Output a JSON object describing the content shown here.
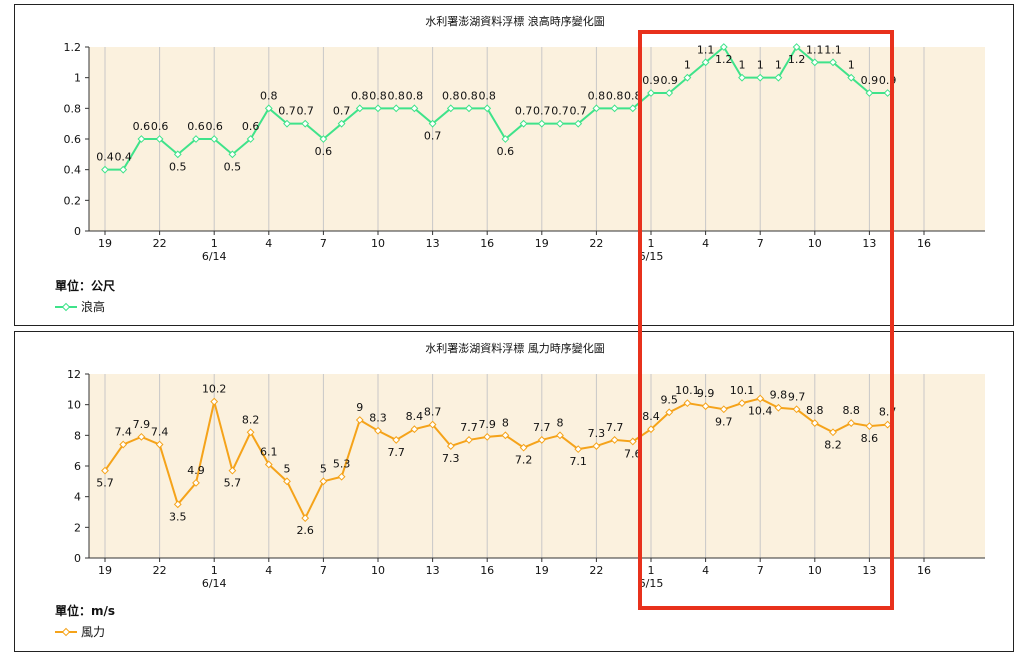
{
  "colors": {
    "plot_bg": "#fbf1de",
    "grid": "#c8c8c8",
    "axis": "#333333",
    "highlight": "#e8311c"
  },
  "highlight": {
    "shape": "rectangle",
    "color": "#e8311c"
  },
  "chart_data": [
    {
      "type": "line",
      "title": "水利署澎湖資料浮標 浪高時序變化圖",
      "ylim": [
        0,
        1.2
      ],
      "yticks": [
        "0",
        "0.2",
        "0.4",
        "0.6",
        "0.8",
        "1",
        "1.2"
      ],
      "xticks": [
        "19",
        "22",
        "1",
        "4",
        "7",
        "10",
        "13",
        "16",
        "19",
        "22",
        "1",
        "4",
        "7",
        "10",
        "13",
        "16"
      ],
      "date_labels": [
        {
          "tick": 2,
          "text": "6/14"
        },
        {
          "tick": 10,
          "text": "6/15"
        }
      ],
      "unit_label": "單位：公尺",
      "series": [
        {
          "name": "浪高",
          "color": "#3fe38a",
          "marker": "diamond",
          "values": [
            0.4,
            0.4,
            0.6,
            0.6,
            0.5,
            0.6,
            0.6,
            0.5,
            0.6,
            0.8,
            0.7,
            0.7,
            0.6,
            0.7,
            0.8,
            0.8,
            0.8,
            0.8,
            0.7,
            0.8,
            0.8,
            0.8,
            0.6,
            0.7,
            0.7,
            0.7,
            0.7,
            0.8,
            0.8,
            0.8,
            0.9,
            0.9,
            1,
            1.1,
            1.2,
            1,
            1,
            1,
            1.2,
            1.1,
            1.1,
            1,
            0.9,
            0.9
          ]
        }
      ],
      "grid": true,
      "legend": "bottom-left"
    },
    {
      "type": "line",
      "title": "水利署澎湖資料浮標 風力時序變化圖",
      "ylim": [
        0,
        12
      ],
      "yticks": [
        "0",
        "2",
        "4",
        "6",
        "8",
        "10",
        "12"
      ],
      "xticks": [
        "19",
        "22",
        "1",
        "4",
        "7",
        "10",
        "13",
        "16",
        "19",
        "22",
        "1",
        "4",
        "7",
        "10",
        "13",
        "16"
      ],
      "date_labels": [
        {
          "tick": 2,
          "text": "6/14"
        },
        {
          "tick": 10,
          "text": "6/15"
        }
      ],
      "unit_label": "單位：m/s",
      "series": [
        {
          "name": "風力",
          "color": "#f5a31a",
          "marker": "diamond",
          "values": [
            5.7,
            7.4,
            7.9,
            7.4,
            3.5,
            4.9,
            10.2,
            5.7,
            8.2,
            6.1,
            5,
            2.6,
            5,
            5.3,
            9,
            8.3,
            7.7,
            8.4,
            8.7,
            7.3,
            7.7,
            7.9,
            8,
            7.2,
            7.7,
            8,
            7.1,
            7.3,
            7.7,
            7.6,
            8.4,
            9.5,
            10.1,
            9.9,
            9.7,
            10.1,
            10.4,
            9.8,
            9.7,
            8.8,
            8.2,
            8.8,
            8.6,
            8.7
          ]
        }
      ],
      "grid": true,
      "legend": "bottom-left"
    }
  ]
}
